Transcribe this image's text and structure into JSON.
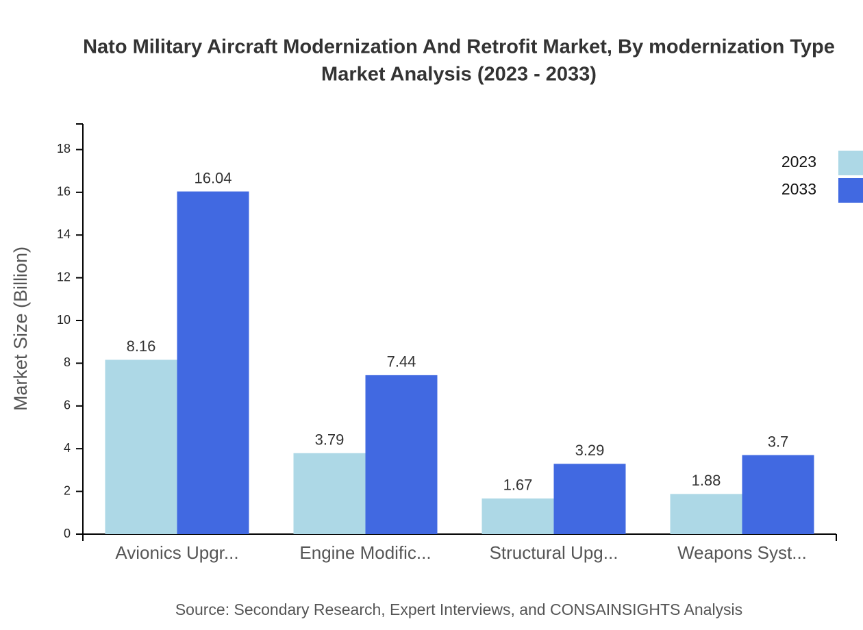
{
  "chart_data": {
    "type": "bar",
    "title": [
      "Nato Military Aircraft Modernization And Retrofit Market, By modernization Type",
      "Market Analysis (2023 - 2033)"
    ],
    "y_axis_label": "Market Size (Billion)",
    "source": "Source: Secondary Research, Expert Interviews, and CONSAINSIGHTS Analysis",
    "categories": [
      "Avionics Upgr...",
      "Engine Modific...",
      "Structural Upg...",
      "Weapons Syst..."
    ],
    "series": [
      {
        "name": "2023",
        "color": "#add8e6",
        "values": [
          8.16,
          3.79,
          1.67,
          1.88
        ]
      },
      {
        "name": "2033",
        "color": "#4169e1",
        "values": [
          16.04,
          7.44,
          3.29,
          3.7
        ]
      }
    ],
    "ylim": [
      0,
      19.2
    ],
    "yticks": [
      0,
      2,
      4,
      6,
      8,
      10,
      12,
      14,
      16,
      18
    ],
    "legend": "top-right"
  }
}
